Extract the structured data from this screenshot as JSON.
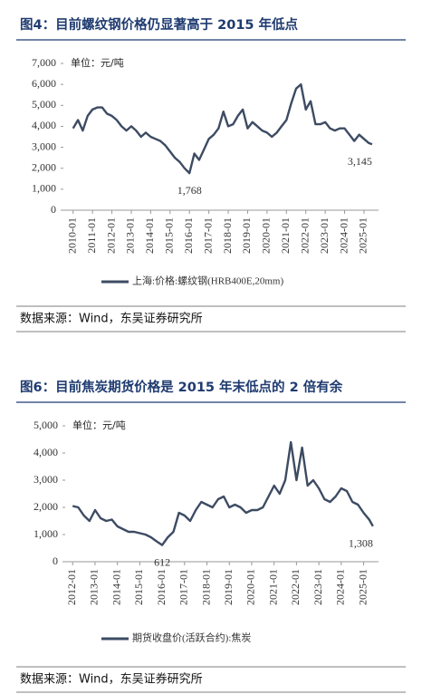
{
  "chart_data": [
    {
      "type": "line",
      "title": "图4：目前螺纹钢价格仍显著高于 2015 年低点",
      "unit_label": "单位：元/吨",
      "source": "数据来源：Wind，东吴证券研究所",
      "x": [
        "2010-01",
        "2010-04",
        "2010-07",
        "2010-10",
        "2011-01",
        "2011-04",
        "2011-07",
        "2011-10",
        "2012-01",
        "2012-04",
        "2012-07",
        "2012-10",
        "2013-01",
        "2013-04",
        "2013-07",
        "2013-10",
        "2014-01",
        "2014-04",
        "2014-07",
        "2014-10",
        "2015-01",
        "2015-04",
        "2015-07",
        "2015-10",
        "2016-01",
        "2016-04",
        "2016-07",
        "2016-10",
        "2017-01",
        "2017-04",
        "2017-07",
        "2017-10",
        "2018-01",
        "2018-04",
        "2018-07",
        "2018-10",
        "2019-01",
        "2019-04",
        "2019-07",
        "2019-10",
        "2020-01",
        "2020-04",
        "2020-07",
        "2020-10",
        "2021-01",
        "2021-04",
        "2021-07",
        "2021-10",
        "2022-01",
        "2022-04",
        "2022-07",
        "2022-10",
        "2023-01",
        "2023-04",
        "2023-07",
        "2023-10",
        "2024-01",
        "2024-04",
        "2024-07",
        "2024-10",
        "2025-01",
        "2025-04",
        "2025-06"
      ],
      "series": [
        {
          "name": "上海:价格:螺纹钢(HRB400E,20mm)",
          "color": "#3d4b63",
          "values": [
            3900,
            4300,
            3800,
            4500,
            4800,
            4900,
            4900,
            4600,
            4500,
            4300,
            4000,
            3800,
            4000,
            3800,
            3500,
            3700,
            3500,
            3400,
            3300,
            3100,
            2800,
            2500,
            2300,
            2000,
            1768,
            2700,
            2400,
            2900,
            3400,
            3600,
            3900,
            4700,
            4000,
            4100,
            4500,
            4800,
            3900,
            4200,
            4000,
            3800,
            3700,
            3500,
            3700,
            4000,
            4300,
            5100,
            5800,
            6000,
            4800,
            5200,
            4100,
            4100,
            4200,
            3900,
            3800,
            3900,
            3900,
            3600,
            3300,
            3600,
            3400,
            3200,
            3145
          ]
        }
      ],
      "annotations": [
        {
          "text": "1,768",
          "x": "2016-01",
          "value": 1768
        },
        {
          "text": "3,145",
          "x": "2025-06",
          "value": 3145
        }
      ],
      "xlim": [
        "2009-07",
        "2025-10"
      ],
      "xticks": [
        "2010-01",
        "2011-01",
        "2012-01",
        "2013-01",
        "2014-01",
        "2015-01",
        "2016-01",
        "2017-01",
        "2018-01",
        "2019-01",
        "2020-01",
        "2021-01",
        "2022-01",
        "2023-01",
        "2024-01",
        "2025-01"
      ],
      "ylim": [
        0,
        7000
      ],
      "yticks": [
        0,
        {
          "value": 1000,
          "label": "1,000"
        },
        {
          "value": 2000,
          "label": "2,000"
        },
        {
          "value": 3000,
          "label": "3,000"
        },
        {
          "value": 4000,
          "label": "4,000"
        },
        {
          "value": 5000,
          "label": "5,000"
        },
        {
          "value": 6000,
          "label": "6,000"
        },
        {
          "value": 7000,
          "label": "7,000"
        }
      ]
    },
    {
      "type": "line",
      "title": "图6：目前焦炭期货价格是 2015 年末低点的 2 倍有余",
      "unit_label": "单位：元/吨",
      "source": "数据来源：Wind，东吴证券研究所",
      "x": [
        "2012-01",
        "2012-04",
        "2012-07",
        "2012-10",
        "2013-01",
        "2013-04",
        "2013-07",
        "2013-10",
        "2014-01",
        "2014-04",
        "2014-07",
        "2014-10",
        "2015-01",
        "2015-04",
        "2015-07",
        "2015-10",
        "2016-01",
        "2016-04",
        "2016-07",
        "2016-10",
        "2017-01",
        "2017-04",
        "2017-07",
        "2017-10",
        "2018-01",
        "2018-04",
        "2018-07",
        "2018-10",
        "2019-01",
        "2019-04",
        "2019-07",
        "2019-10",
        "2020-01",
        "2020-04",
        "2020-07",
        "2020-10",
        "2021-01",
        "2021-04",
        "2021-07",
        "2021-10",
        "2022-01",
        "2022-04",
        "2022-07",
        "2022-10",
        "2023-01",
        "2023-04",
        "2023-07",
        "2023-10",
        "2024-01",
        "2024-04",
        "2024-07",
        "2024-10",
        "2025-01",
        "2025-04",
        "2025-06"
      ],
      "series": [
        {
          "name": "期货收盘价(活跃合约):焦炭",
          "color": "#3d4b63",
          "values": [
            2050,
            2000,
            1700,
            1500,
            1900,
            1600,
            1500,
            1550,
            1300,
            1200,
            1100,
            1100,
            1050,
            1000,
            900,
            750,
            612,
            900,
            1100,
            1800,
            1700,
            1500,
            1900,
            2200,
            2100,
            2000,
            2300,
            2400,
            2000,
            2100,
            2000,
            1800,
            1900,
            1900,
            2000,
            2400,
            2800,
            2500,
            3000,
            4400,
            3000,
            4200,
            2800,
            3000,
            2700,
            2300,
            2200,
            2400,
            2700,
            2600,
            2200,
            2100,
            1800,
            1550,
            1308
          ]
        }
      ],
      "annotations": [
        {
          "text": "612",
          "x": "2016-01",
          "value": 612
        },
        {
          "text": "1,308",
          "x": "2025-06",
          "value": 1308
        }
      ],
      "xlim": [
        "2011-09",
        "2025-09"
      ],
      "xticks": [
        "2012-01",
        "2013-01",
        "2014-01",
        "2015-01",
        "2016-01",
        "2017-01",
        "2018-01",
        "2019-01",
        "2020-01",
        "2021-01",
        "2022-01",
        "2023-01",
        "2024-01",
        "2025-01"
      ],
      "ylim": [
        0,
        5000
      ],
      "yticks": [
        0,
        {
          "value": 1000,
          "label": "1,000"
        },
        {
          "value": 2000,
          "label": "2,000"
        },
        {
          "value": 3000,
          "label": "3,000"
        },
        {
          "value": 4000,
          "label": "4,000"
        },
        {
          "value": 5000,
          "label": "5,000"
        }
      ]
    }
  ]
}
